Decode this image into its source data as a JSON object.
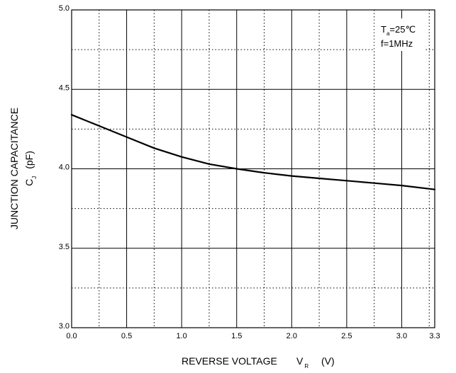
{
  "chart_data": {
    "type": "line",
    "title": "",
    "xlabel": {
      "main": "REVERSE VOLTAGE",
      "symbol": "V",
      "subscript": "R",
      "unit": "(V)"
    },
    "ylabel": {
      "line1": "JUNCTION CAPACITANCE",
      "symbol": "C",
      "subscript": "J",
      "unit": "(pF)"
    },
    "xlim": [
      0.0,
      3.3
    ],
    "ylim": [
      3.0,
      5.0
    ],
    "x_ticks": [
      "0.0",
      "0.5",
      "1.0",
      "1.5",
      "2.0",
      "2.5",
      "3.0",
      "3.3"
    ],
    "y_ticks": [
      "5.0",
      "4.5",
      "4.0",
      "3.5",
      "3.0"
    ],
    "grid": {
      "major": "solid",
      "minor": "dotted",
      "x_minor_step": 0.25,
      "y_minor_step": 0.25
    },
    "conditions": {
      "ta_symbol": "T",
      "ta_subscript": "a",
      "ta_value": "=25℃",
      "freq": "f=1MHz"
    },
    "series": [
      {
        "x": [
          0.0,
          0.25,
          0.5,
          0.75,
          1.0,
          1.25,
          1.5,
          1.75,
          2.0,
          2.25,
          2.5,
          2.75,
          3.0,
          3.3
        ],
        "y": [
          4.34,
          4.27,
          4.2,
          4.13,
          4.075,
          4.03,
          4.0,
          3.975,
          3.955,
          3.94,
          3.925,
          3.91,
          3.895,
          3.87
        ],
        "color": "#000000"
      }
    ]
  }
}
